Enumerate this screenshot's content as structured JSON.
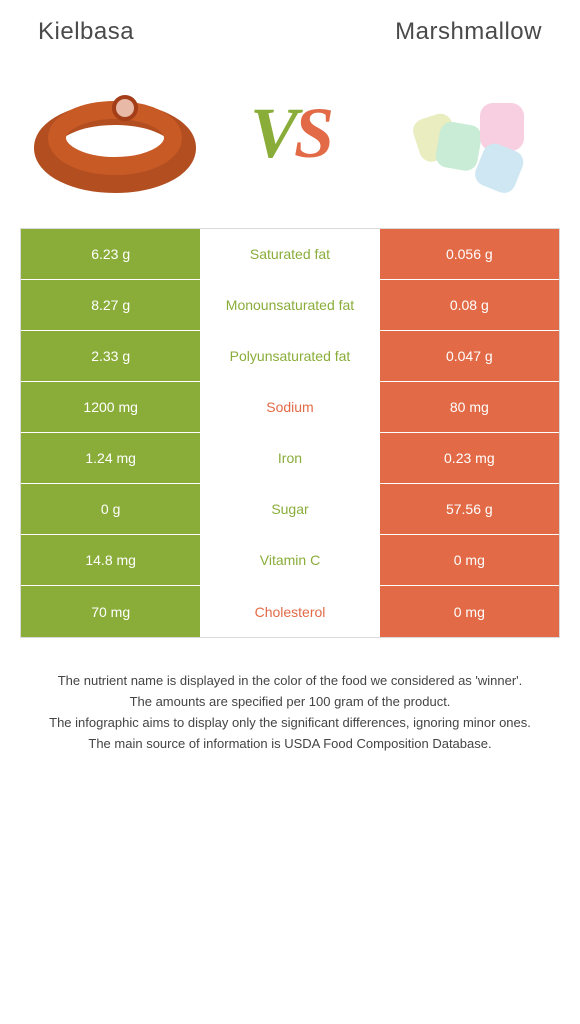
{
  "header": {
    "left_title": "Kielbasa",
    "right_title": "Marshmallow"
  },
  "vs": {
    "v": "V",
    "s": "S"
  },
  "colors": {
    "left": "#8aad3a",
    "right": "#e26a46",
    "row_sep": "#ffffff",
    "border": "#d9d9d9",
    "text": "#333333"
  },
  "typography": {
    "title_fontsize": 24,
    "vs_fontsize": 72,
    "cell_fontsize": 14,
    "notes_fontsize": 13
  },
  "table": {
    "type": "comparison-table",
    "left_bg": "#8aad3a",
    "right_bg": "#e26a46",
    "mid_bg": "#ffffff",
    "rows": [
      {
        "left": "6.23 g",
        "label": "Saturated fat",
        "right": "0.056 g",
        "winner": "left"
      },
      {
        "left": "8.27 g",
        "label": "Monounsaturated fat",
        "right": "0.08 g",
        "winner": "left"
      },
      {
        "left": "2.33 g",
        "label": "Polyunsaturated fat",
        "right": "0.047 g",
        "winner": "left"
      },
      {
        "left": "1200 mg",
        "label": "Sodium",
        "right": "80 mg",
        "winner": "right"
      },
      {
        "left": "1.24 mg",
        "label": "Iron",
        "right": "0.23 mg",
        "winner": "left"
      },
      {
        "left": "0 g",
        "label": "Sugar",
        "right": "57.56 g",
        "winner": "left"
      },
      {
        "left": "14.8 mg",
        "label": "Vitamin C",
        "right": "0 mg",
        "winner": "left"
      },
      {
        "left": "70 mg",
        "label": "Cholesterol",
        "right": "0 mg",
        "winner": "right"
      }
    ]
  },
  "notes": [
    "The nutrient name is displayed in the color of the food we considered as 'winner'.",
    "The amounts are specified per 100 gram of the product.",
    "The infographic aims to display only the significant differences, ignoring minor ones.",
    "The main source of information is USDA Food Composition Database."
  ],
  "images": {
    "left_alt": "kielbasa-sausage",
    "right_alt": "marshmallows"
  }
}
